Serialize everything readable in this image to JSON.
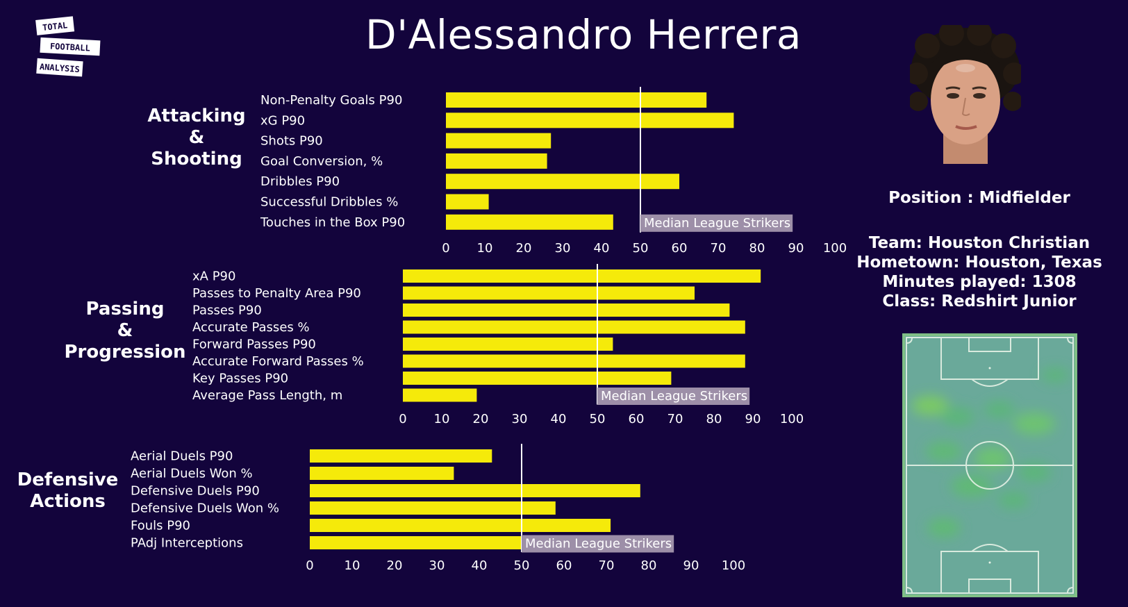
{
  "header": {
    "title": "D'Alessandro Herrera",
    "logo_lines": [
      "TOTAL",
      "FOOTBALL",
      "ANALYSIS"
    ]
  },
  "profile": {
    "position": "Position : Midfielder",
    "team": "Team: Houston Christian",
    "hometown": "Hometown: Houston, Texas",
    "minutes": "Minutes played: 1308",
    "class": "Class: Redshirt Junior"
  },
  "colors": {
    "background": "#13043c",
    "bar": "#f5ea0a",
    "median_line": "#ffffff",
    "median_label_bg": "#9d8fa8",
    "pitch": "#7fbf86"
  },
  "icons": {
    "photo": "player-photo",
    "heatmap": "pitch-heatmap"
  },
  "chart_data": [
    {
      "type": "bar",
      "orientation": "horizontal",
      "group_label": [
        "Attacking",
        "&",
        "Shooting"
      ],
      "categories": [
        "Non-Penalty Goals P90",
        "xG P90",
        "Shots P90",
        "Goal Conversion, %",
        "Dribbles P90",
        "Successful Dribbles %",
        "Touches in the Box P90"
      ],
      "values": [
        67,
        74,
        27,
        26,
        60,
        11,
        43
      ],
      "xlim": [
        0,
        100
      ],
      "xticks": [
        0,
        10,
        20,
        30,
        40,
        50,
        60,
        70,
        80,
        90,
        100
      ],
      "median": 50,
      "median_label": "Median League Strikers"
    },
    {
      "type": "bar",
      "orientation": "horizontal",
      "group_label": [
        "Passing",
        "&",
        "Progression"
      ],
      "categories": [
        "xA P90",
        "Passes to Penalty Area P90",
        "Passes P90",
        "Accurate Passes %",
        "Forward Passes P90",
        "Accurate Forward Passes %",
        "Key Passes P90",
        "Average Pass Length, m"
      ],
      "values": [
        92,
        75,
        84,
        88,
        54,
        88,
        69,
        19
      ],
      "xlim": [
        0,
        100
      ],
      "xticks": [
        0,
        10,
        20,
        30,
        40,
        50,
        60,
        70,
        80,
        90,
        100
      ],
      "median": 50,
      "median_label": "Median League Strikers"
    },
    {
      "type": "bar",
      "orientation": "horizontal",
      "group_label": [
        "Defensive",
        "Actions"
      ],
      "categories": [
        "Aerial Duels P90",
        "Aerial Duels Won %",
        "Defensive Duels P90",
        "Defensive Duels Won %",
        "Fouls P90",
        "PAdj Interceptions"
      ],
      "values": [
        43,
        34,
        78,
        58,
        71,
        50
      ],
      "xlim": [
        0,
        100
      ],
      "xticks": [
        0,
        10,
        20,
        30,
        40,
        50,
        60,
        70,
        80,
        90,
        100
      ],
      "median": 50,
      "median_label": "Median League Strikers"
    }
  ]
}
